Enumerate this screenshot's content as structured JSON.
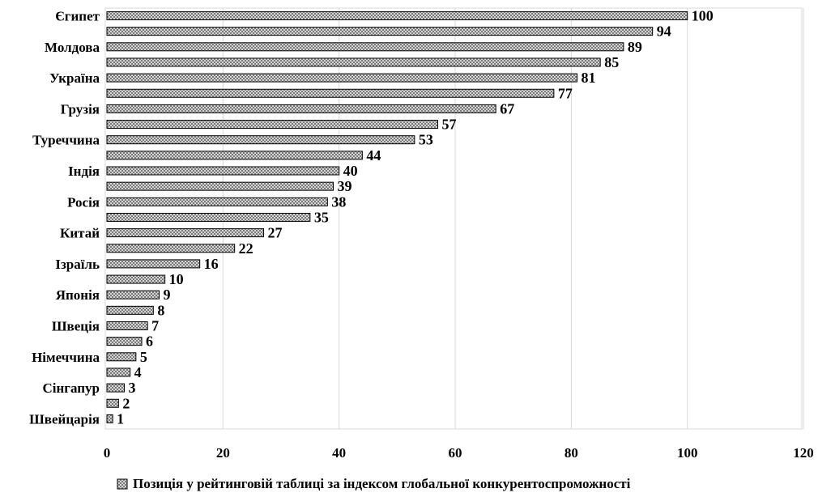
{
  "chart_data": {
    "type": "bar",
    "orientation": "horizontal",
    "categories": [
      "Єгипет",
      "",
      "Молдова",
      "",
      "Україна",
      "",
      "Грузія",
      "",
      "Туреччина",
      "",
      "Індія",
      "",
      "Росія",
      "",
      "Китай",
      "",
      "Ізраїль",
      "",
      "Японія",
      "",
      "Швеція",
      "",
      "Німеччина",
      "",
      "Сінгапур",
      "",
      "Швейцарія"
    ],
    "series": [
      {
        "name": "Позиція у рейтинговій таблиці за індексом глобальної конкурентоспроможності",
        "values": [
          100,
          94,
          89,
          85,
          81,
          77,
          67,
          57,
          53,
          44,
          40,
          39,
          38,
          35,
          27,
          22,
          16,
          10,
          9,
          8,
          7,
          6,
          5,
          4,
          3,
          2,
          1
        ]
      }
    ],
    "xlim": [
      0,
      120
    ],
    "xticks": [
      0,
      20,
      40,
      60,
      80,
      100,
      120
    ],
    "data_labels": true,
    "grid": "vertical",
    "legend_position": "bottom",
    "colors": {
      "bar_fill": "#c8c8c8",
      "bar_stroke": "#000000",
      "grid": "#d9d9d9"
    }
  }
}
